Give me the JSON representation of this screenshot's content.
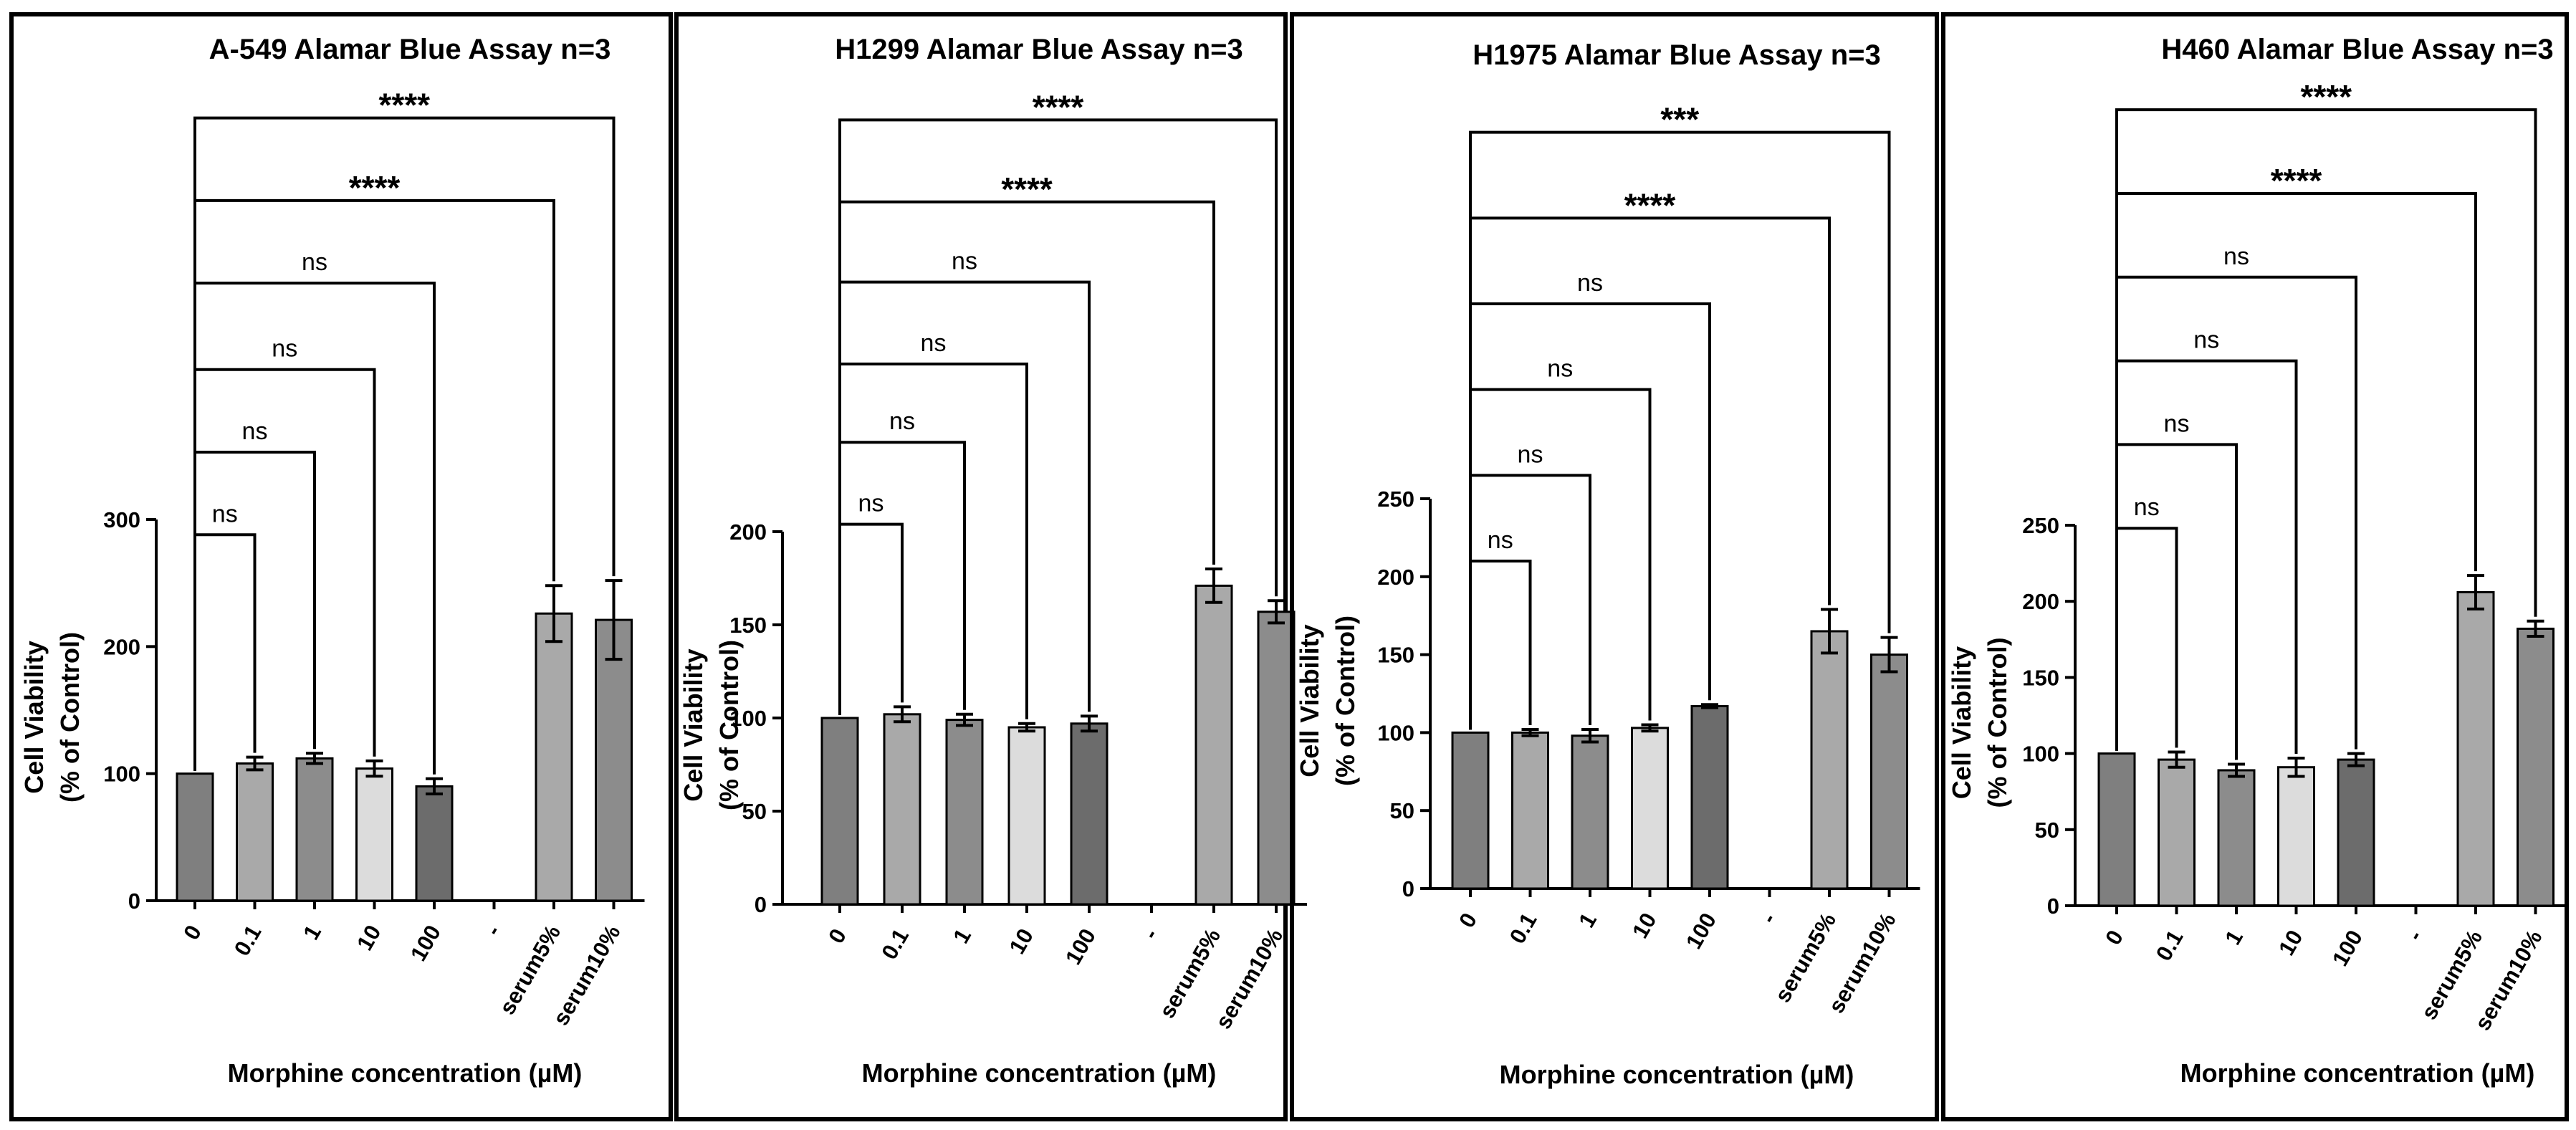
{
  "chart_data": [
    {
      "type": "bar",
      "title": "A-549 Alamar Blue Assay n=3",
      "xlabel": "Morphine concentration (µM)",
      "ylabel_line1": "Cell Viability",
      "ylabel_line2": "(% of Control)",
      "ylim": [
        0,
        300
      ],
      "yticks": [
        0,
        100,
        200,
        300
      ],
      "categories": [
        "0",
        "0.1",
        "1",
        "10",
        "100",
        "-",
        "serum5%",
        "serum10%"
      ],
      "values": [
        100,
        108,
        112,
        104,
        90,
        null,
        226,
        221
      ],
      "errors": [
        0,
        5,
        4,
        6,
        6,
        null,
        22,
        31
      ],
      "bar_colors": [
        "#7f7f7f",
        "#a9a9a9",
        "#8c8c8c",
        "#dcdcdc",
        "#6c6c6c",
        null,
        "#a9a9a9",
        "#8c8c8c"
      ],
      "significance": [
        {
          "to": "0.1",
          "label": "ns",
          "bracket_height": 288
        },
        {
          "to": "1",
          "label": "ns",
          "bracket_height": 353
        },
        {
          "to": "10",
          "label": "ns",
          "bracket_height": 418
        },
        {
          "to": "100",
          "label": "ns",
          "bracket_height": 486
        },
        {
          "to": "serum5%",
          "label": "****",
          "bracket_height": 551
        },
        {
          "to": "serum10%",
          "label": "****",
          "bracket_height": 616
        }
      ]
    },
    {
      "type": "bar",
      "title": "H1299 Alamar Blue Assay n=3",
      "xlabel": "Morphine concentration (µM)",
      "ylabel_line1": "Cell Viability",
      "ylabel_line2": "(% of Control)",
      "ylim": [
        0,
        200
      ],
      "yticks": [
        0,
        50,
        100,
        150,
        200
      ],
      "categories": [
        "0",
        "0.1",
        "1",
        "10",
        "100",
        "-",
        "serum5%",
        "serum10%"
      ],
      "values": [
        100,
        102,
        99,
        95,
        97,
        null,
        171,
        157
      ],
      "errors": [
        0,
        4,
        3,
        2,
        4,
        null,
        9,
        6
      ],
      "bar_colors": [
        "#7f7f7f",
        "#a9a9a9",
        "#8c8c8c",
        "#dcdcdc",
        "#6c6c6c",
        null,
        "#a9a9a9",
        "#8c8c8c"
      ],
      "significance": [
        {
          "to": "0.1",
          "label": "ns",
          "bracket_height": 204
        },
        {
          "to": "1",
          "label": "ns",
          "bracket_height": 248
        },
        {
          "to": "10",
          "label": "ns",
          "bracket_height": 290
        },
        {
          "to": "100",
          "label": "ns",
          "bracket_height": 334
        },
        {
          "to": "serum5%",
          "label": "****",
          "bracket_height": 377
        },
        {
          "to": "serum10%",
          "label": "****",
          "bracket_height": 421
        }
      ]
    },
    {
      "type": "bar",
      "title": "H1975 Alamar Blue Assay n=3",
      "xlabel": "Morphine concentration (µM)",
      "ylabel_line1": "Cell Viability",
      "ylabel_line2": "(% of Control)",
      "ylim": [
        0,
        250
      ],
      "yticks": [
        0,
        50,
        100,
        150,
        200,
        250
      ],
      "categories": [
        "0",
        "0.1",
        "1",
        "10",
        "100",
        "-",
        "serum5%",
        "serum10%"
      ],
      "values": [
        100,
        100,
        98,
        103,
        117,
        null,
        165,
        150
      ],
      "errors": [
        0,
        2,
        4,
        2,
        1,
        null,
        14,
        11
      ],
      "bar_colors": [
        "#7f7f7f",
        "#a9a9a9",
        "#8c8c8c",
        "#dcdcdc",
        "#6c6c6c",
        null,
        "#a9a9a9",
        "#8c8c8c"
      ],
      "significance": [
        {
          "to": "0.1",
          "label": "ns",
          "bracket_height": 210
        },
        {
          "to": "1",
          "label": "ns",
          "bracket_height": 265
        },
        {
          "to": "10",
          "label": "ns",
          "bracket_height": 320
        },
        {
          "to": "100",
          "label": "ns",
          "bracket_height": 375
        },
        {
          "to": "serum5%",
          "label": "****",
          "bracket_height": 430
        },
        {
          "to": "serum10%",
          "label": "***",
          "bracket_height": 485
        }
      ]
    },
    {
      "type": "bar",
      "title": "H460 Alamar Blue Assay n=3",
      "xlabel": "Morphine concentration (µM)",
      "ylabel_line1": "Cell Viability",
      "ylabel_line2": "(% of Control)",
      "ylim": [
        0,
        250
      ],
      "yticks": [
        0,
        50,
        100,
        150,
        200,
        250
      ],
      "categories": [
        "0",
        "0.1",
        "1",
        "10",
        "100",
        "-",
        "serum5%",
        "serum10%"
      ],
      "values": [
        100,
        96,
        89,
        91,
        96,
        null,
        206,
        182
      ],
      "errors": [
        0,
        5,
        4,
        6,
        4,
        null,
        11,
        5
      ],
      "bar_colors": [
        "#7f7f7f",
        "#a9a9a9",
        "#8c8c8c",
        "#dcdcdc",
        "#6c6c6c",
        null,
        "#a9a9a9",
        "#8c8c8c"
      ],
      "significance": [
        {
          "to": "0.1",
          "label": "ns",
          "bracket_height": 248
        },
        {
          "to": "1",
          "label": "ns",
          "bracket_height": 303
        },
        {
          "to": "10",
          "label": "ns",
          "bracket_height": 358
        },
        {
          "to": "100",
          "label": "ns",
          "bracket_height": 413
        },
        {
          "to": "serum5%",
          "label": "****",
          "bracket_height": 468
        },
        {
          "to": "serum10%",
          "label": "****",
          "bracket_height": 523
        }
      ]
    }
  ]
}
